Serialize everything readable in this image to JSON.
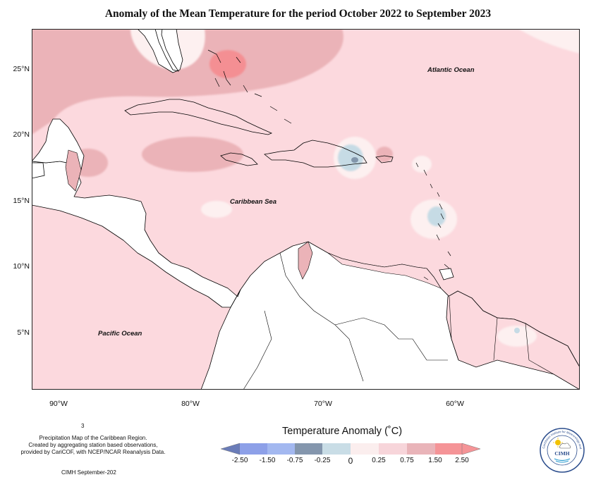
{
  "title": "Anomaly of the Mean Temperature for the period October 2022 to September 2023",
  "axes": {
    "y_ticks": [
      "25°N",
      "20°N",
      "15°N",
      "10°N",
      "5°N"
    ],
    "x_ticks": [
      "90°W",
      "80°W",
      "70°W",
      "60°W"
    ]
  },
  "labels": {
    "atlantic": "Atlantic Ocean",
    "caribbean": "Caribbean Sea",
    "pacific": "Pacific Ocean"
  },
  "footnote": {
    "page_number": "3",
    "line1": "Precipitation Map of the Caribbean Region.",
    "line2": "Created by aggregating station based observations,",
    "line3": "provided by CariCOF, with NCEP/NCAR Reanalysis Data.",
    "credit": "CIMH September-202"
  },
  "legend": {
    "title": "Temperature Anomaly (˚C)",
    "ticks": [
      "-2.50",
      "-1.50",
      "-0.75",
      "-0.25",
      "0",
      "0.25",
      "0.75",
      "1.50",
      "2.50"
    ],
    "colors": [
      "#6a7cb8",
      "#8da0e8",
      "#a3b8f0",
      "#8496ad",
      "#c9dde6",
      "#fbeeee",
      "#f7d5da",
      "#e9b4b9",
      "#f59497"
    ]
  },
  "logo": {
    "text": "CIMH",
    "ring_text": "Caribbean Institute for Meteorology and Hydrology"
  },
  "colors": {
    "anomaly_025_075": "#fcd9de",
    "anomaly_075_150": "#ebb3b8",
    "anomaly_150_250": "#f48f93",
    "anomaly_0_025": "#fdf0f0",
    "anomaly_neg_low": "#c6dbe5",
    "anomaly_neg_mid": "#8296ab",
    "land": "#ffffff"
  }
}
